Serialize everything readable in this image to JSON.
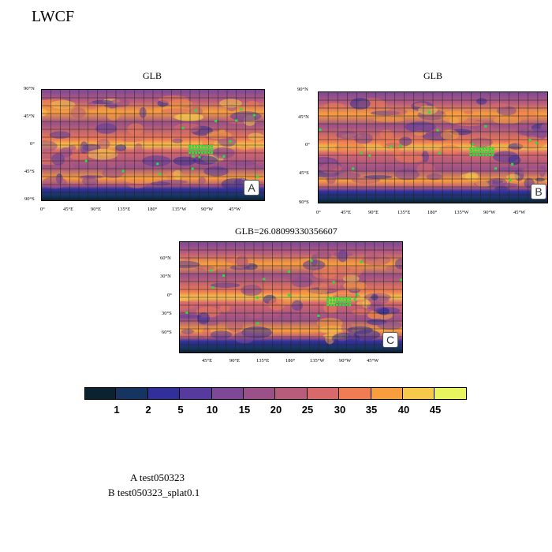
{
  "page": {
    "title": "LWCF"
  },
  "panels": [
    {
      "id": "A",
      "title": "GLB",
      "tag": "A",
      "lat_labels": [
        "90°N",
        "45°N",
        "0°",
        "45°S",
        "90°S"
      ],
      "lon_labels": [
        "0°",
        "45°E",
        "90°E",
        "135°E",
        "180°",
        "135°W",
        "90°W",
        "45°W"
      ]
    },
    {
      "id": "B",
      "title": "GLB",
      "tag": "B",
      "lat_labels": [
        "90°N",
        "45°N",
        "0°",
        "45°S",
        "90°S"
      ],
      "lon_labels": [
        "0°",
        "45°E",
        "90°E",
        "135°E",
        "180°",
        "135°W",
        "90°W",
        "45°W"
      ]
    },
    {
      "id": "C",
      "title": "GLB=26.08099330356607",
      "tag": "C",
      "lat_labels": [
        "60°N",
        "30°N",
        "0°",
        "30°S",
        "60°S"
      ],
      "lon_labels": [
        "45°E",
        "90°E",
        "135°E",
        "180°",
        "135°W",
        "90°W",
        "45°W"
      ]
    }
  ],
  "colorbar": {
    "colors": [
      "#0b2230",
      "#163460",
      "#31309b",
      "#563a9e",
      "#7d4896",
      "#9a5088",
      "#b85c7c",
      "#d8696b",
      "#ef7c52",
      "#f89e3c",
      "#f6c94a",
      "#e9f55f"
    ],
    "labels": [
      "1",
      "2",
      "5",
      "10",
      "15",
      "20",
      "25",
      "30",
      "35",
      "40",
      "45"
    ]
  },
  "legend": {
    "lines": [
      "A  test050323",
      "B  test050323_splat0.1"
    ]
  }
}
